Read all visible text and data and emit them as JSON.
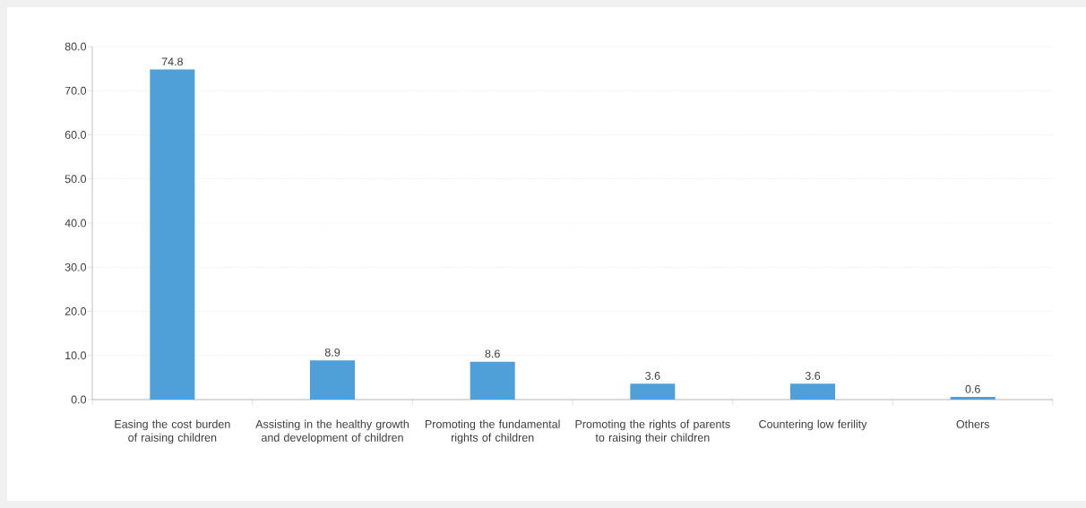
{
  "chart_data": {
    "type": "bar",
    "categories": [
      "Easing the cost burden of raising children",
      "Assisting in the healthy growth and development of children",
      "Promoting the fundamental rights of children",
      "Promoting the rights of parents to raising their children",
      "Countering low ferility",
      "Others"
    ],
    "values": [
      74.8,
      8.9,
      8.6,
      3.6,
      3.6,
      0.6
    ],
    "color": "#4f9fd9",
    "data_labels": true,
    "ylim": [
      0,
      80
    ],
    "yticks": [
      {
        "value": 0,
        "label": "0.0"
      },
      {
        "value": 10,
        "label": "10.0"
      },
      {
        "value": 20,
        "label": "20.0"
      },
      {
        "value": 30,
        "label": "30.0"
      },
      {
        "value": 40,
        "label": "40.0"
      },
      {
        "value": 50,
        "label": "50.0"
      },
      {
        "value": 60,
        "label": "60.0"
      },
      {
        "value": 70,
        "label": "70.0"
      },
      {
        "value": 80,
        "label": "80.0"
      }
    ],
    "grid": "y"
  }
}
